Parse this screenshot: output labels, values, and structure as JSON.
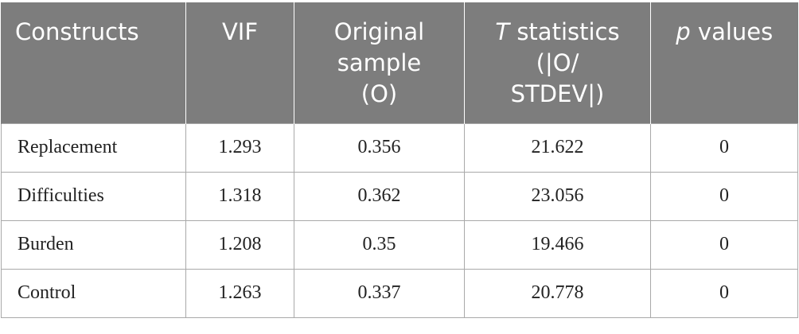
{
  "table": {
    "headers": [
      {
        "lines": [
          "Constructs"
        ]
      },
      {
        "lines": [
          "VIF"
        ]
      },
      {
        "lines": [
          "Original",
          "sample",
          "(O)"
        ]
      },
      {
        "lines": [
          "statistics",
          "(|O/",
          "STDEV|)"
        ],
        "italic_prefix": "T"
      },
      {
        "lines": [
          "values"
        ],
        "italic_prefix": "p"
      }
    ],
    "rows": [
      {
        "construct": "Replacement",
        "vif": "1.293",
        "original_sample": "0.356",
        "t_statistic": "21.622",
        "p_value": "0"
      },
      {
        "construct": "Difficulties",
        "vif": "1.318",
        "original_sample": "0.362",
        "t_statistic": "23.056",
        "p_value": "0"
      },
      {
        "construct": "Burden",
        "vif": "1.208",
        "original_sample": "0.35",
        "t_statistic": "19.466",
        "p_value": "0"
      },
      {
        "construct": "Control",
        "vif": "1.263",
        "original_sample": "0.337",
        "t_statistic": "20.778",
        "p_value": "0"
      }
    ],
    "colors": {
      "header_background": "#7d7d7d",
      "header_text": "#ffffff",
      "cell_border": "#a9a9a9",
      "cell_text": "#222222"
    }
  }
}
